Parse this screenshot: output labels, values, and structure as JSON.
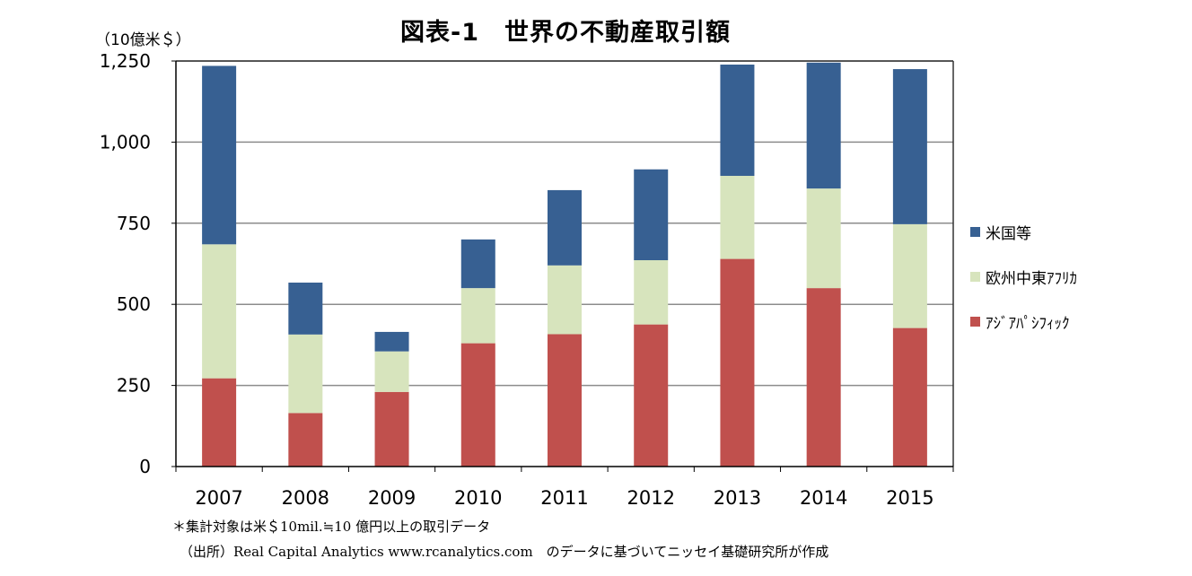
{
  "chart_data": {
    "type": "bar",
    "stacked": true,
    "title": "図表-1　世界の不動産取引額",
    "unit_label": "（10億米＄）",
    "categories": [
      "2007",
      "2008",
      "2009",
      "2010",
      "2011",
      "2012",
      "2013",
      "2014",
      "2015"
    ],
    "series": [
      {
        "name": "ｱｼﾞｱﾊﾟｼﾌｨｯｸ",
        "color": "#c0504d",
        "values": [
          272,
          165,
          230,
          380,
          408,
          438,
          640,
          550,
          427
        ]
      },
      {
        "name": "欧州中東ｱﾌﾘｶ",
        "color": "#d7e4bd",
        "values": [
          413,
          242,
          125,
          170,
          212,
          198,
          256,
          307,
          320
        ]
      },
      {
        "name": "米国等",
        "color": "#376092",
        "values": [
          550,
          160,
          60,
          150,
          232,
          280,
          343,
          388,
          478
        ]
      }
    ],
    "legend_order": [
      "米国等",
      "欧州中東ｱﾌﾘｶ",
      "ｱｼﾞｱﾊﾟｼﾌｨｯｸ"
    ],
    "ylim": [
      0,
      1250
    ],
    "yticks": [
      0,
      250,
      500,
      750,
      1000,
      1250
    ],
    "ytick_labels": [
      "0",
      "250",
      "500",
      "750",
      "1,000",
      "1,250"
    ],
    "grid": true,
    "legend_position": "right"
  },
  "notes": {
    "line1": "＊集計対象は米＄10mil.≒10 億円以上の取引データ",
    "line2": "（出所）Real Capital Analytics www.rcanalytics.com　のデータに基づいてニッセイ基礎研究所が作成"
  }
}
